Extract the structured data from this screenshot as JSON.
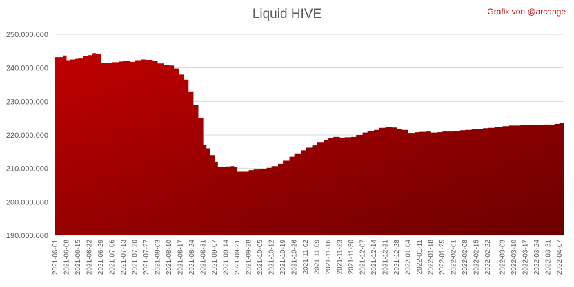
{
  "credit": "Grafik von @arcange",
  "chart_data": {
    "type": "area",
    "title": "Liquid HIVE",
    "xlabel": "",
    "ylabel": "",
    "ylim": [
      190000000,
      250000000
    ],
    "yticks": [
      190000000,
      200000000,
      210000000,
      220000000,
      230000000,
      240000000,
      250000000
    ],
    "ytick_labels": [
      "190.000.000",
      "200.000.000",
      "210.000.000",
      "220.000.000",
      "230.000.000",
      "240.000.000",
      "250.000.000"
    ],
    "grid": true,
    "legend": "none",
    "colors": {
      "fill_top": "#c00000",
      "fill_bottom": "#6b0000",
      "grid": "#d9d9d9"
    },
    "x_tick_labels": [
      "2021-06-01",
      "2021-06-08",
      "2021-06-15",
      "2021-06-22",
      "2021-06-29",
      "2021-07-06",
      "2021-07-13",
      "2021-07-20",
      "2021-07-27",
      "2021-08-03",
      "2021-08-10",
      "2021-08-17",
      "2021-08-24",
      "2021-08-31",
      "2021-09-07",
      "2021-09-14",
      "2021-09-21",
      "2021-09-28",
      "2021-10-05",
      "2021-10-12",
      "2021-10-19",
      "2021-10-26",
      "2021-11-02",
      "2021-11-09",
      "2021-11-16",
      "2021-11-23",
      "2021-11-30",
      "2021-12-07",
      "2021-12-14",
      "2021-12-21",
      "2021-12-28",
      "2022-01-04",
      "2022-01-11",
      "2022-01-18",
      "2022-01-25",
      "2022-02-01",
      "2022-02-08",
      "2022-02-15",
      "2022-02-22",
      "2022-03-03",
      "2022-03-10",
      "2022-03-17",
      "2022-03-24",
      "2022-03-31",
      "2022-04-07"
    ],
    "series": [
      {
        "x": [
          "2021-06-01",
          "2021-06-04",
          "2021-06-06",
          "2021-06-08",
          "2021-06-10",
          "2021-06-13",
          "2021-06-15",
          "2021-06-18",
          "2021-06-21",
          "2021-06-24",
          "2021-06-26",
          "2021-06-29",
          "2021-07-01",
          "2021-07-06",
          "2021-07-10",
          "2021-07-13",
          "2021-07-17",
          "2021-07-20",
          "2021-07-24",
          "2021-07-27",
          "2021-07-31",
          "2021-08-03",
          "2021-08-07",
          "2021-08-10",
          "2021-08-13",
          "2021-08-16",
          "2021-08-19",
          "2021-08-22",
          "2021-08-25",
          "2021-08-28",
          "2021-08-31",
          "2021-09-02",
          "2021-09-04",
          "2021-09-07",
          "2021-09-09",
          "2021-09-12",
          "2021-09-14",
          "2021-09-17",
          "2021-09-19",
          "2021-09-21",
          "2021-09-24",
          "2021-09-28",
          "2021-10-01",
          "2021-10-05",
          "2021-10-09",
          "2021-10-12",
          "2021-10-16",
          "2021-10-19",
          "2021-10-23",
          "2021-10-26",
          "2021-10-30",
          "2021-11-02",
          "2021-11-06",
          "2021-11-09",
          "2021-11-13",
          "2021-11-16",
          "2021-11-19",
          "2021-11-23",
          "2021-11-26",
          "2021-11-30",
          "2021-12-03",
          "2021-12-07",
          "2021-12-10",
          "2021-12-14",
          "2021-12-17",
          "2021-12-21",
          "2021-12-25",
          "2021-12-28",
          "2021-12-31",
          "2022-01-04",
          "2022-01-08",
          "2022-01-11",
          "2022-01-15",
          "2022-01-18",
          "2022-01-22",
          "2022-01-25",
          "2022-01-29",
          "2022-02-01",
          "2022-02-05",
          "2022-02-08",
          "2022-02-12",
          "2022-02-15",
          "2022-02-19",
          "2022-02-22",
          "2022-02-26",
          "2022-03-03",
          "2022-03-07",
          "2022-03-10",
          "2022-03-14",
          "2022-03-17",
          "2022-03-21",
          "2022-03-24",
          "2022-03-28",
          "2022-03-31",
          "2022-04-04",
          "2022-04-07",
          "2022-04-10"
        ],
        "values": [
          243200000,
          243200000,
          243700000,
          242300000,
          242500000,
          242900000,
          243000000,
          243500000,
          243800000,
          244400000,
          244200000,
          241500000,
          241500000,
          241700000,
          241900000,
          242100000,
          241800000,
          242300000,
          242500000,
          242400000,
          242000000,
          241300000,
          240900000,
          240700000,
          239800000,
          238000000,
          236500000,
          233000000,
          229000000,
          225000000,
          217000000,
          216000000,
          214000000,
          212000000,
          210500000,
          210500000,
          210600000,
          210700000,
          210500000,
          209000000,
          209000000,
          209500000,
          209700000,
          209900000,
          210200000,
          210700000,
          211400000,
          212300000,
          213500000,
          214300000,
          215400000,
          216200000,
          216900000,
          217700000,
          218500000,
          219100000,
          219400000,
          219200000,
          219300000,
          219400000,
          220000000,
          220700000,
          221100000,
          221500000,
          222100000,
          222300000,
          222200000,
          221800000,
          221500000,
          220600000,
          220800000,
          220900000,
          221000000,
          220700000,
          220800000,
          221000000,
          221000000,
          221200000,
          221400000,
          221500000,
          221700000,
          221800000,
          222000000,
          222100000,
          222300000,
          222600000,
          222800000,
          222800000,
          222900000,
          223000000,
          223000000,
          223000000,
          223100000,
          223100000,
          223300000,
          223600000,
          223800000
        ]
      }
    ]
  }
}
